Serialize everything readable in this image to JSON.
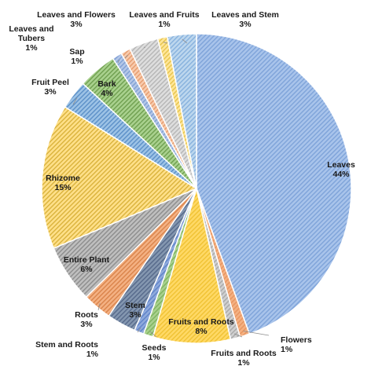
{
  "chart_data": {
    "type": "pie",
    "title": "",
    "slices": [
      {
        "label": "Leaves",
        "value": 44,
        "pct_label": "44%",
        "color": "#a9c4eb",
        "stripe": "#7ea3d9"
      },
      {
        "label": "Flowers",
        "value": 1,
        "pct_label": "1%",
        "color": "#f4b183",
        "stripe": "#e8955f"
      },
      {
        "label": "Fruits and Roots",
        "value": 1,
        "pct_label": "1%",
        "color": "#d0d0d0",
        "stripe": "#a8a8a8"
      },
      {
        "label": "Fruits and Roots",
        "value": 8,
        "pct_label": "8%",
        "color": "#ffd966",
        "stripe": "#f0c233"
      },
      {
        "label": "Seeds",
        "value": 1,
        "pct_label": "1%",
        "color": "#a9d18e",
        "stripe": "#7fb35f"
      },
      {
        "label": "Stem and Roots",
        "value": 1,
        "pct_label": "1%",
        "color": "#8faadc",
        "stripe": "#5f83c9"
      },
      {
        "label": "Stem",
        "value": 3,
        "pct_label": "3%",
        "color": "#8497b0",
        "stripe": "#56698a"
      },
      {
        "label": "Roots",
        "value": 3,
        "pct_label": "3%",
        "color": "#f4b183",
        "stripe": "#d9834a"
      },
      {
        "label": "Entire Plant",
        "value": 6,
        "pct_label": "6%",
        "color": "#bfbfbf",
        "stripe": "#8c8c8c"
      },
      {
        "label": "Rhizome",
        "value": 15,
        "pct_label": "15%",
        "color": "#ffe08a",
        "stripe": "#d9b23b"
      },
      {
        "label": "Fruit Peel",
        "value": 3,
        "pct_label": "3%",
        "color": "#9dc3e6",
        "stripe": "#5b8fc7"
      },
      {
        "label": "Bark",
        "value": 4,
        "pct_label": "4%",
        "color": "#a9d18e",
        "stripe": "#6e9e4f"
      },
      {
        "label": "Sap",
        "value": 1,
        "pct_label": "1%",
        "color": "#b4c7e7",
        "stripe": "#7f9fd4"
      },
      {
        "label": "Leaves and Tubers",
        "value": 1,
        "pct_label": "1%",
        "color": "#f8cbad",
        "stripe": "#e59b6d"
      },
      {
        "label": "Leaves and Flowers",
        "value": 3,
        "pct_label": "3%",
        "color": "#dedede",
        "stripe": "#b5b5b5"
      },
      {
        "label": "Leaves and Fruits",
        "value": 1,
        "pct_label": "1%",
        "color": "#ffe699",
        "stripe": "#e6c44d"
      },
      {
        "label": "Leaves and Stem",
        "value": 3,
        "pct_label": "3%",
        "color": "#bdd7ee",
        "stripe": "#86b1dd"
      }
    ]
  }
}
